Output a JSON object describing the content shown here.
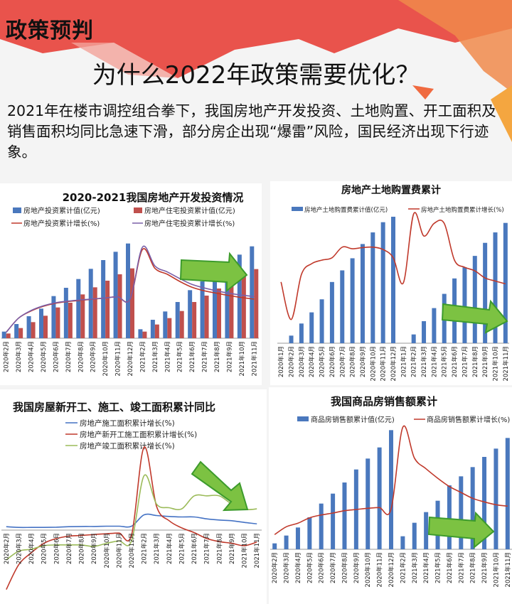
{
  "header": {
    "section": "政策预判",
    "title": "为什么2022年政策需要优化？",
    "paragraph": "  2021年在楼市调控组合拳下，我国房地产开发投资、土地购置、开工面积及销售面积均同比急速下滑，部分房企出现“爆雷”风险，国民经济出现下行迹象。"
  },
  "colors": {
    "blue": "#4a78bd",
    "red": "#c0504d",
    "line_red": "#c0392b",
    "purple": "#7a5fa8",
    "green": "#9bbb59",
    "arrow": "#7cc242",
    "arrow_stroke": "#3d9b2c"
  },
  "chart_data": [
    {
      "type": "bar",
      "title": "2020-2021我国房地产开发投资情况",
      "xlabel": "",
      "ylabel": "",
      "ylim": [
        0,
        420
      ],
      "grid": false,
      "legend": "top",
      "note": "relative estimated values, no y-axis shown",
      "categories": [
        "2020年2月",
        "2020年3月",
        "2020年4月",
        "2020年5月",
        "2020年6月",
        "2020年7月",
        "2020年8月",
        "2020年9月",
        "2020年10月",
        "2020年11月",
        "2020年12月",
        "2021年2月",
        "2021年3月",
        "2021年4月",
        "2021年5月",
        "2021年6月",
        "2021年7月",
        "2021年8月",
        "2021年9月",
        "2021年10月",
        "2021年11月"
      ],
      "series": [
        {
          "name": "房地产投资累计值(亿元)",
          "kind": "bar",
          "color": "#4a78bd",
          "values": [
            28,
            60,
            93,
            125,
            178,
            213,
            250,
            293,
            330,
            365,
            400,
            38,
            78,
            113,
            153,
            203,
            240,
            260,
            300,
            353,
            388
          ]
        },
        {
          "name": "房地产住宅投资累计值(亿元)",
          "kind": "bar",
          "color": "#c0504d",
          "values": [
            20,
            43,
            68,
            95,
            130,
            150,
            185,
            215,
            243,
            270,
            295,
            28,
            58,
            85,
            115,
            153,
            180,
            210,
            235,
            265,
            292
          ]
        },
        {
          "name": "房地产投资累计增长(%)",
          "kind": "line",
          "color": "#c0392b",
          "values": [
            25,
            85,
            115,
            135,
            148,
            155,
            160,
            165,
            170,
            175,
            165,
            375,
            295,
            270,
            240,
            215,
            200,
            190,
            180,
            172,
            165
          ]
        },
        {
          "name": "房地产住宅投资累计增长(%)",
          "kind": "line",
          "color": "#7a5fa8",
          "values": [
            25,
            85,
            117,
            137,
            150,
            157,
            162,
            166,
            170,
            175,
            165,
            385,
            305,
            280,
            252,
            227,
            212,
            200,
            190,
            182,
            176
          ]
        }
      ]
    },
    {
      "type": "bar",
      "title": "房地产土地购置费累计",
      "xlabel": "",
      "ylabel": "",
      "ylim": [
        0,
        560
      ],
      "grid": false,
      "legend": "top",
      "categories": [
        "2020年1月",
        "2020年2月",
        "2020年3月",
        "2020年4月",
        "2020年5月",
        "2020年6月",
        "2020年7月",
        "2020年8月",
        "2020年9月",
        "2020年10月",
        "2020年11月",
        "2020年12月",
        "2021年1月",
        "2021年2月",
        "2021年3月",
        "2021年4月",
        "2021年5月",
        "2021年6月",
        "2021年7月",
        "2021年8月",
        "2021年9月",
        "2021年10月",
        "2021年11月"
      ],
      "series": [
        {
          "name": "房地产土地购置费累计值(亿元)",
          "kind": "bar",
          "color": "#4a78bd",
          "values": [
            0,
            32,
            83,
            130,
            185,
            258,
            307,
            358,
            418,
            467,
            510,
            533,
            0,
            37,
            93,
            148,
            208,
            273,
            320,
            368,
            423,
            467,
            507
          ]
        },
        {
          "name": "房地产土地购置费累计增长(%)",
          "kind": "line",
          "color": "#c0392b",
          "values": [
            258,
            100,
            290,
            335,
            350,
            360,
            405,
            398,
            403,
            405,
            395,
            360,
            255,
            545,
            452,
            505,
            505,
            350,
            320,
            305,
            275,
            262,
            250
          ]
        }
      ]
    },
    {
      "type": "line",
      "title": "我国房屋新开工、施工、竣工面积累计同比",
      "xlabel": "",
      "ylabel": "",
      "ylim": [
        -260,
        360
      ],
      "grid": false,
      "legend": "top",
      "categories": [
        "2020年2月",
        "2020年3月",
        "2020年4月",
        "2020年5月",
        "2020年6月",
        "2020年7月",
        "2020年8月",
        "2020年9月",
        "2020年10月",
        "2020年11月",
        "2020年12月",
        "2021年2月",
        "2021年3月",
        "2021年4月",
        "2021年5月",
        "2021年6月",
        "2021年7月",
        "2021年8月",
        "2021年9月",
        "2021年10月",
        "2021年11月"
      ],
      "series": [
        {
          "name": "房地产施工面积累计增长(%)",
          "kind": "line",
          "color": "#4472c4",
          "values": [
            15,
            12,
            12,
            12,
            13,
            15,
            16,
            16,
            17,
            17,
            17,
            65,
            62,
            58,
            56,
            56,
            48,
            43,
            40,
            33,
            27
          ]
        },
        {
          "name": "房地产新开工施工面积累计增长(%)",
          "kind": "line",
          "color": "#c0392b",
          "values": [
            -250,
            -145,
            -95,
            -55,
            -35,
            -25,
            -22,
            -18,
            -15,
            -12,
            -20,
            350,
            100,
            40,
            10,
            -10,
            -35,
            -48,
            -55,
            -65,
            -50
          ]
        },
        {
          "name": "房地产竣工面积累计增长(%)",
          "kind": "line",
          "color": "#9bbb59",
          "values": [
            -125,
            -88,
            -80,
            -65,
            -62,
            -62,
            -62,
            -68,
            -55,
            -45,
            -45,
            230,
            110,
            95,
            90,
            145,
            145,
            145,
            110,
            88,
            90
          ]
        }
      ]
    },
    {
      "type": "bar",
      "title": "我国商品房销售额累计",
      "xlabel": "",
      "ylabel": "",
      "ylim": [
        0,
        540
      ],
      "grid": false,
      "legend": "top",
      "categories": [
        "2020年2月",
        "2020年3月",
        "2020年4月",
        "2020年5月",
        "2020年6月",
        "2020年7月",
        "2020年8月",
        "2020年9月",
        "2020年10月",
        "2020年11月",
        "2020年12月",
        "2021年2月",
        "2021年3月",
        "2021年4月",
        "2021年5月",
        "2021年6月",
        "2021年7月",
        "2021年8月",
        "2021年9月",
        "2021年10月",
        "2021年11月"
      ],
      "series": [
        {
          "name": "商品房销售额累计值(亿元)",
          "kind": "bar",
          "color": "#4a78bd",
          "values": [
            25,
            58,
            92,
            135,
            193,
            235,
            282,
            337,
            383,
            430,
            503,
            55,
            112,
            157,
            205,
            270,
            308,
            347,
            390,
            425,
            470
          ]
        },
        {
          "name": "商品房销售额累计增长(%)",
          "kind": "line",
          "color": "#c0392b",
          "values": [
            62,
            95,
            110,
            133,
            145,
            153,
            163,
            168,
            173,
            176,
            170,
            515,
            385,
            340,
            300,
            265,
            240,
            215,
            200,
            188,
            182
          ]
        }
      ]
    }
  ]
}
